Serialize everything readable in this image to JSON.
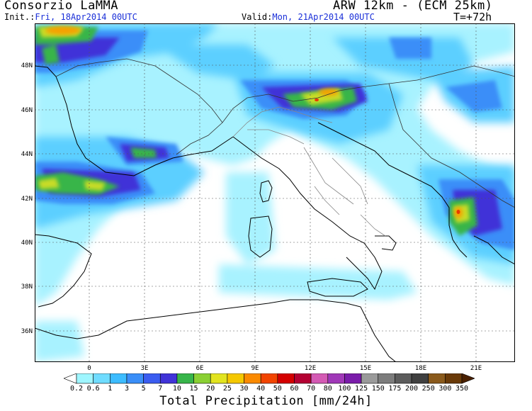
{
  "header": {
    "organization": "Consorzio LaMMA",
    "model": "ARW 12km - (ECM 25km)",
    "init_label": "Init.:",
    "init_value": "Fri, 18Apr2014 00UTC",
    "valid_label": "Valid:",
    "valid_value": "Mon, 21Apr2014 00UTC",
    "forecast_step": "T=+72h"
  },
  "map": {
    "lat_labels": [
      "48N",
      "46N",
      "44N",
      "42N",
      "40N",
      "38N",
      "36N"
    ],
    "lon_labels": [
      "0",
      "3E",
      "6E",
      "9E",
      "12E",
      "15E",
      "18E",
      "21E"
    ]
  },
  "colorbar": {
    "title": "Total Precipitation [mm/24h]",
    "levels": [
      "0.2",
      "0.6",
      "1",
      "3",
      "5",
      "7",
      "10",
      "15",
      "20",
      "25",
      "30",
      "40",
      "50",
      "60",
      "70",
      "80",
      "100",
      "125",
      "150",
      "175",
      "200",
      "250",
      "300",
      "350"
    ],
    "colors": [
      "#ffffff",
      "#9ff6ff",
      "#6fdcff",
      "#3cbcff",
      "#3a8ef8",
      "#3a5cf0",
      "#4033d8",
      "#37b54a",
      "#8ad033",
      "#e2e41f",
      "#f5c800",
      "#fb8a00",
      "#f24400",
      "#d40000",
      "#b40032",
      "#d45ab4",
      "#a038b8",
      "#7a1caa",
      "#9a9a9a",
      "#7c7c7c",
      "#5c5c5c",
      "#404040",
      "#8a5a1c",
      "#6a3a08",
      "#4a2000"
    ]
  }
}
